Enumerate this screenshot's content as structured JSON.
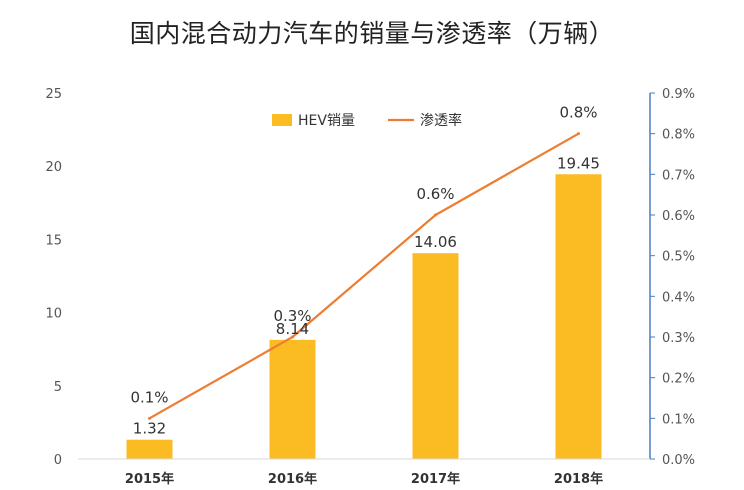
{
  "chart_data": {
    "type": "bar",
    "title": "国内混合动力汽车的销量与渗透率（万辆）",
    "categories": [
      "2015年",
      "2016年",
      "2017年",
      "2018年"
    ],
    "series": [
      {
        "name": "HEV销量",
        "type": "bar",
        "axis": "left",
        "color": "#FBBC23",
        "values": [
          1.32,
          8.14,
          14.06,
          19.45
        ],
        "labels": [
          "1.32",
          "8.14",
          "14.06",
          "19.45"
        ]
      },
      {
        "name": "渗透率",
        "type": "line",
        "axis": "right",
        "color": "#ED7D31",
        "values": [
          0.1,
          0.3,
          0.6,
          0.8
        ],
        "labels": [
          "0.1%",
          "0.3%",
          "0.6%",
          "0.8%"
        ]
      }
    ],
    "y_left": {
      "min": 0,
      "max": 25,
      "ticks": [
        "0",
        "5",
        "10",
        "15",
        "20",
        "25"
      ]
    },
    "y_right": {
      "min": 0,
      "max": 0.9,
      "ticks": [
        "0.0%",
        "0.1%",
        "0.2%",
        "0.3%",
        "0.4%",
        "0.5%",
        "0.6%",
        "0.7%",
        "0.8%",
        "0.9%"
      ]
    },
    "right_axis_color": "#4A7EBB",
    "legend_position": "top-center",
    "grid": false
  }
}
